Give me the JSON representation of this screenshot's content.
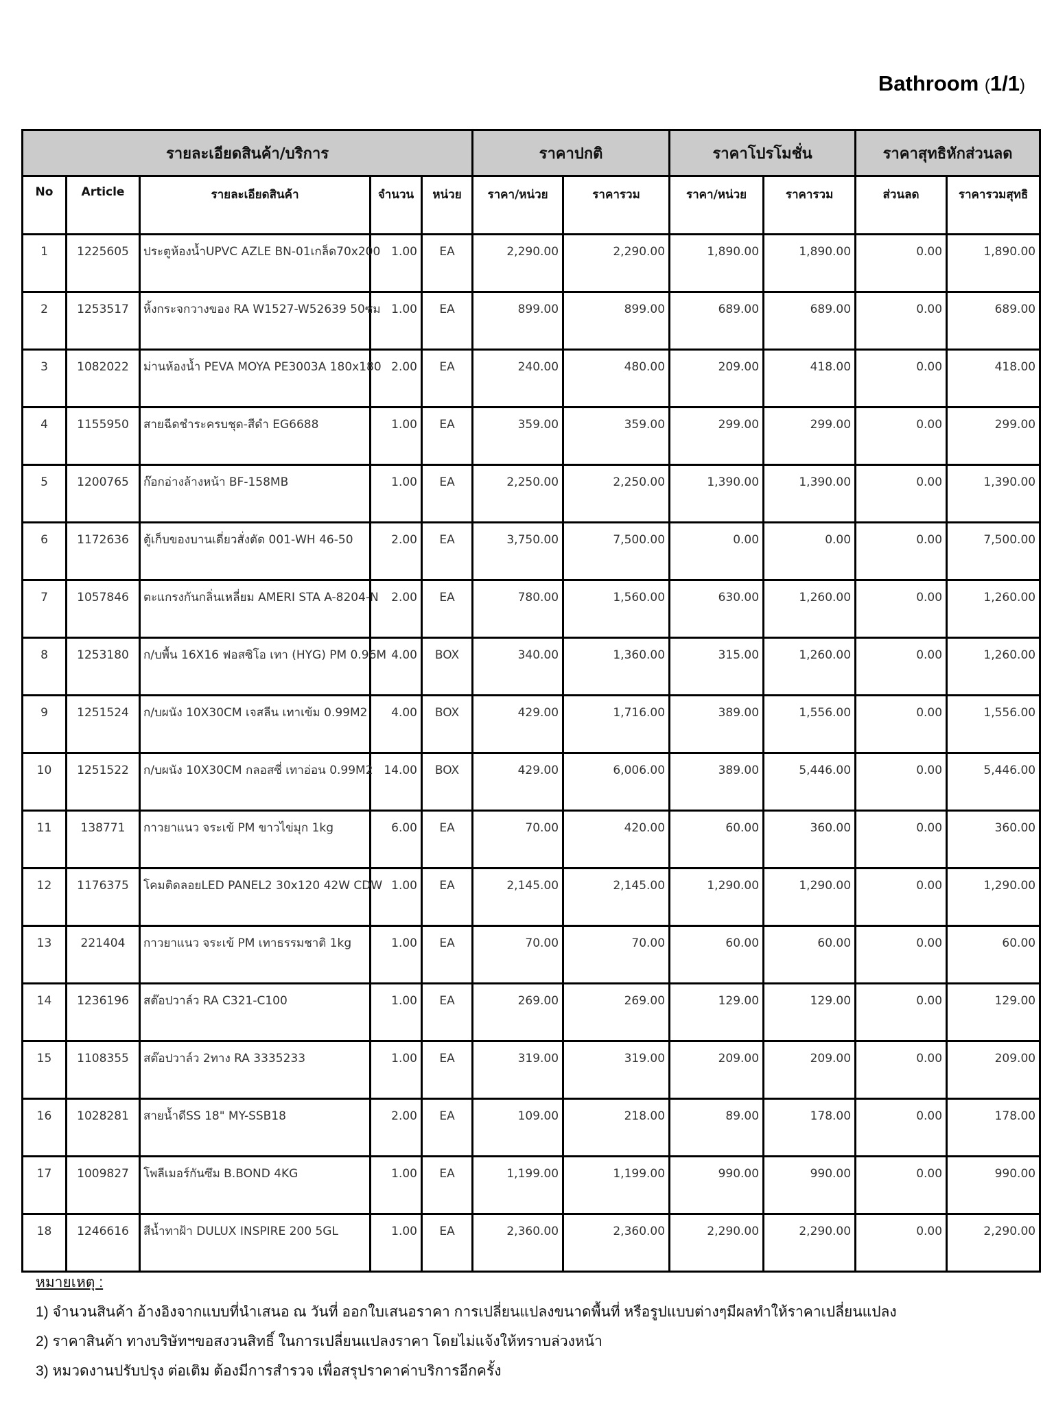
{
  "title": {
    "main": "Bathroom",
    "page": "1/1"
  },
  "header": {
    "groups": [
      "รายละเอียดสินค้า/บริการ",
      "ราคาปกติ",
      "ราคาโปรโมชั่น",
      "ราคาสุทธิหักส่วนลด"
    ],
    "columns": [
      "No",
      "Article",
      "รายละเอียดสินค้า",
      "จำนวน",
      "หน่วย",
      "ราคา/หน่วย",
      "ราคารวม",
      "ราคา/หน่วย",
      "ราคารวม",
      "ส่วนลด",
      "ราคารวมสุทธิ"
    ]
  },
  "rows": [
    [
      "1",
      "1225605",
      "ประตูห้องน้ำUPVC AZLE BN-01เกล็ด70x200",
      "1.00",
      "EA",
      "2,290.00",
      "2,290.00",
      "1,890.00",
      "1,890.00",
      "0.00",
      "1,890.00"
    ],
    [
      "2",
      "1253517",
      "หิ้งกระจกวางของ RA W1527-W52639 50ซม",
      "1.00",
      "EA",
      "899.00",
      "899.00",
      "689.00",
      "689.00",
      "0.00",
      "689.00"
    ],
    [
      "3",
      "1082022",
      "ม่านห้องน้ำ PEVA MOYA PE3003A 180x180",
      "2.00",
      "EA",
      "240.00",
      "480.00",
      "209.00",
      "418.00",
      "0.00",
      "418.00"
    ],
    [
      "4",
      "1155950",
      "สายฉีดชำระครบชุด-สีดำ EG6688",
      "1.00",
      "EA",
      "359.00",
      "359.00",
      "299.00",
      "299.00",
      "0.00",
      "299.00"
    ],
    [
      "5",
      "1200765",
      "ก๊อกอ่างล้างหน้า  BF-158MB",
      "1.00",
      "EA",
      "2,250.00",
      "2,250.00",
      "1,390.00",
      "1,390.00",
      "0.00",
      "1,390.00"
    ],
    [
      "6",
      "1172636",
      "ตู้เก็บของบานเดี่ยวสั่งตัด 001-WH 46-50",
      "2.00",
      "EA",
      "3,750.00",
      "7,500.00",
      "0.00",
      "0.00",
      "0.00",
      "7,500.00"
    ],
    [
      "7",
      "1057846",
      "ตะแกรงกันกลิ่นเหลี่ยม AMERI STA A-8204-N",
      "2.00",
      "EA",
      "780.00",
      "1,560.00",
      "630.00",
      "1,260.00",
      "0.00",
      "1,260.00"
    ],
    [
      "8",
      "1253180",
      "ก/บพื้น 16X16 ฟอสซิโอ เทา (HYG) PM 0.96M",
      "4.00",
      "BOX",
      "340.00",
      "1,360.00",
      "315.00",
      "1,260.00",
      "0.00",
      "1,260.00"
    ],
    [
      "9",
      "1251524",
      "ก/บผนัง 10X30CM เจสลีน เทาเข้ม 0.99M2",
      "4.00",
      "BOX",
      "429.00",
      "1,716.00",
      "389.00",
      "1,556.00",
      "0.00",
      "1,556.00"
    ],
    [
      "10",
      "1251522",
      "ก/บผนัง 10X30CM กลอสซี่ เทาอ่อน 0.99M2",
      "14.00",
      "BOX",
      "429.00",
      "6,006.00",
      "389.00",
      "5,446.00",
      "0.00",
      "5,446.00"
    ],
    [
      "11",
      "138771",
      "กาวยาแนว จระเข้ PM ขาวไข่มุก 1kg",
      "6.00",
      "EA",
      "70.00",
      "420.00",
      "60.00",
      "360.00",
      "0.00",
      "360.00"
    ],
    [
      "12",
      "1176375",
      "โคมติดลอยLED PANEL2 30x120 42W CDW",
      "1.00",
      "EA",
      "2,145.00",
      "2,145.00",
      "1,290.00",
      "1,290.00",
      "0.00",
      "1,290.00"
    ],
    [
      "13",
      "221404",
      "กาวยาแนว จระเข้ PM เทาธรรมชาติ 1kg",
      "1.00",
      "EA",
      "70.00",
      "70.00",
      "60.00",
      "60.00",
      "0.00",
      "60.00"
    ],
    [
      "14",
      "1236196",
      "สต๊อปวาล์ว RA C321-C100",
      "1.00",
      "EA",
      "269.00",
      "269.00",
      "129.00",
      "129.00",
      "0.00",
      "129.00"
    ],
    [
      "15",
      "1108355",
      "สต๊อปวาล์ว 2ทาง RA 3335233",
      "1.00",
      "EA",
      "319.00",
      "319.00",
      "209.00",
      "209.00",
      "0.00",
      "209.00"
    ],
    [
      "16",
      "1028281",
      "สายน้ำดีSS 18\" MY-SSB18",
      "2.00",
      "EA",
      "109.00",
      "218.00",
      "89.00",
      "178.00",
      "0.00",
      "178.00"
    ],
    [
      "17",
      "1009827",
      "โพลีเมอร์กันซึม B.BOND 4KG",
      "1.00",
      "EA",
      "1,199.00",
      "1,199.00",
      "990.00",
      "990.00",
      "0.00",
      "990.00"
    ],
    [
      "18",
      "1246616",
      "สีน้ำทาฝ้า DULUX INSPIRE 200 5GL",
      "1.00",
      "EA",
      "2,360.00",
      "2,360.00",
      "2,290.00",
      "2,290.00",
      "0.00",
      "2,290.00"
    ]
  ],
  "notes": {
    "heading": "หมายเหตุ :",
    "items": [
      "1) จำนวนสินค้า อ้างอิงจากแบบที่นำเสนอ ณ วันที่ ออกใบเสนอราคา การเปลี่ยนแปลงขนาดพื้นที่ หรือรูปแบบต่างๆมีผลทำให้ราคาเปลี่ยนแปลง",
      "2) ราคาสินค้า ทางบริษัทฯขอสงวนสิทธิ์ ในการเปลี่ยนแปลงราคา โดยไม่แจ้งให้ทราบล่วงหน้า",
      "3) หมวดงานปรับปรุง ต่อเติม ต้องมีการสำรวจ เพื่อสรุปราคาค่าบริการอีกครั้ง"
    ]
  }
}
